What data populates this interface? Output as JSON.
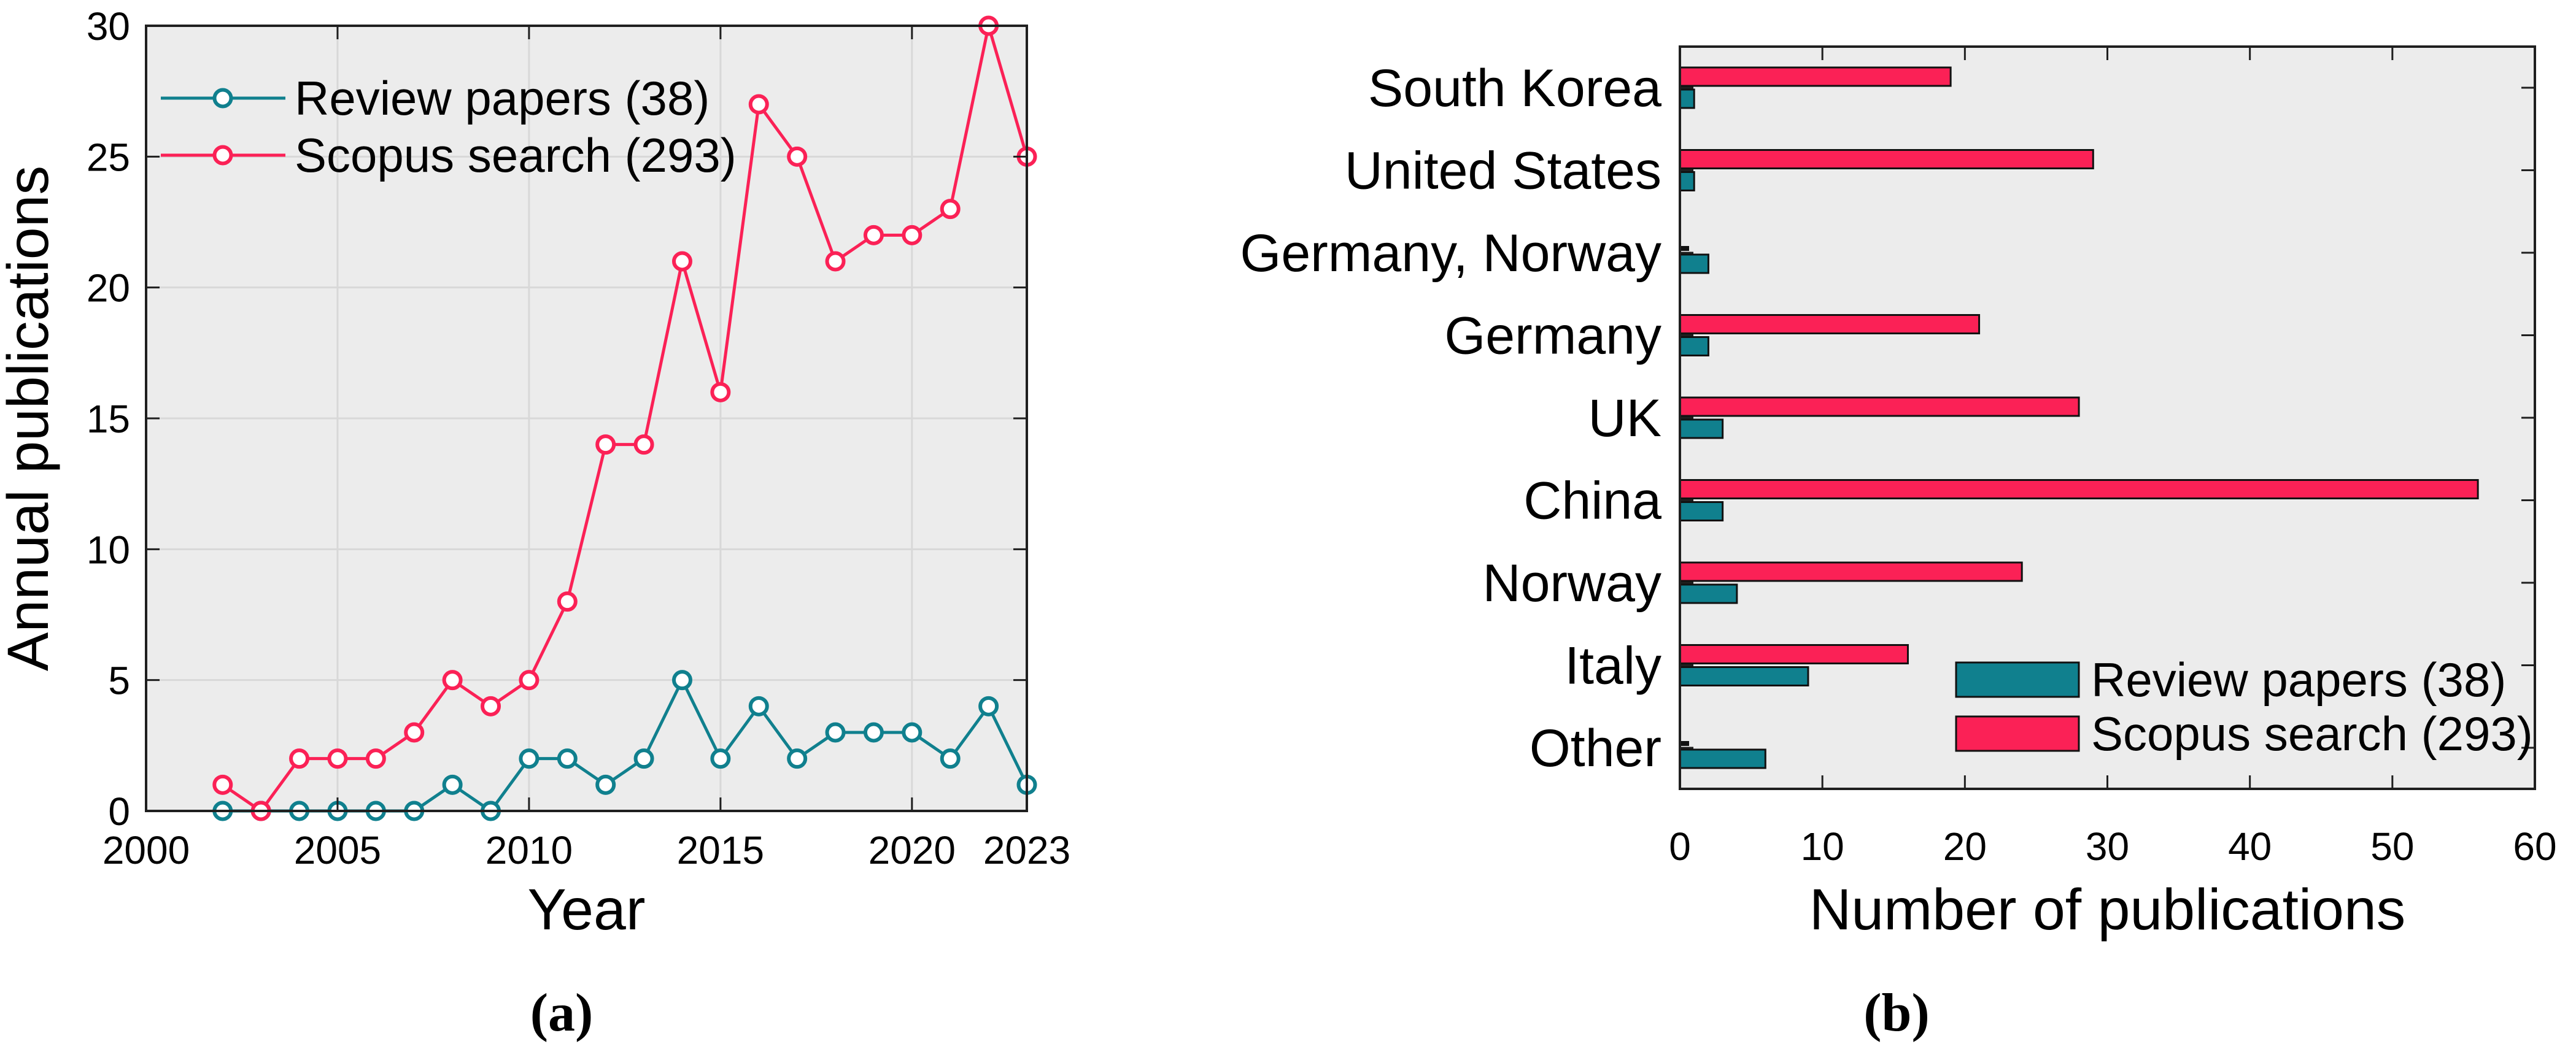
{
  "figure": {
    "caption_a": "(a)",
    "caption_b": "(b)",
    "background": "#ffffff"
  },
  "colors": {
    "review": "#10808e",
    "scopus": "#fb2156",
    "plot_bg": "#ececec",
    "grid": "#d8d8d8",
    "axis": "#1f1f1f",
    "bar_edge": "#111111",
    "text": "#000000",
    "marker_fill": "#ffffff"
  },
  "chart_data": [
    {
      "id": "annual-publications",
      "type": "line",
      "title": "",
      "xlabel": "Year",
      "ylabel": "Annual publications",
      "xlim": [
        2000,
        2023
      ],
      "ylim": [
        0,
        30
      ],
      "xticks": [
        2000,
        2005,
        2010,
        2015,
        2020,
        2023
      ],
      "yticks": [
        0,
        5,
        10,
        15,
        20,
        25,
        30
      ],
      "grid": true,
      "legend_position": "top-left",
      "x": [
        2002,
        2003,
        2004,
        2005,
        2006,
        2007,
        2008,
        2009,
        2010,
        2011,
        2012,
        2013,
        2014,
        2015,
        2016,
        2017,
        2018,
        2019,
        2020,
        2021,
        2022,
        2023
      ],
      "series": [
        {
          "name": "Review papers (38)",
          "color_key": "review",
          "values": [
            0,
            0,
            0,
            0,
            0,
            0,
            1,
            0,
            2,
            2,
            1,
            2,
            5,
            2,
            4,
            2,
            3,
            3,
            3,
            2,
            4,
            1
          ]
        },
        {
          "name": "Scopus search (293)",
          "color_key": "scopus",
          "values": [
            1,
            0,
            2,
            2,
            2,
            3,
            5,
            4,
            5,
            8,
            14,
            14,
            21,
            16,
            27,
            25,
            21,
            22,
            22,
            23,
            30,
            25
          ]
        }
      ]
    },
    {
      "id": "publications-by-country",
      "type": "bar",
      "orientation": "horizontal",
      "title": "",
      "xlabel": "Number of publications",
      "ylabel": "",
      "xlim": [
        0,
        60
      ],
      "xticks": [
        0,
        10,
        20,
        30,
        40,
        50,
        60
      ],
      "grid": false,
      "legend_position": "bottom-right",
      "categories": [
        "South Korea",
        "United States",
        "Germany, Norway",
        "Germany",
        "UK",
        "China",
        "Norway",
        "Italy",
        "Other"
      ],
      "series": [
        {
          "name": "Scopus search (293)",
          "color_key": "scopus",
          "values": [
            19,
            29,
            0,
            21,
            28,
            56,
            24,
            16,
            0
          ]
        },
        {
          "name": "Review papers (38)",
          "color_key": "review",
          "values": [
            1,
            1,
            2,
            2,
            3,
            3,
            4,
            9,
            6
          ]
        }
      ],
      "legend_display_order": [
        1,
        0
      ]
    }
  ]
}
